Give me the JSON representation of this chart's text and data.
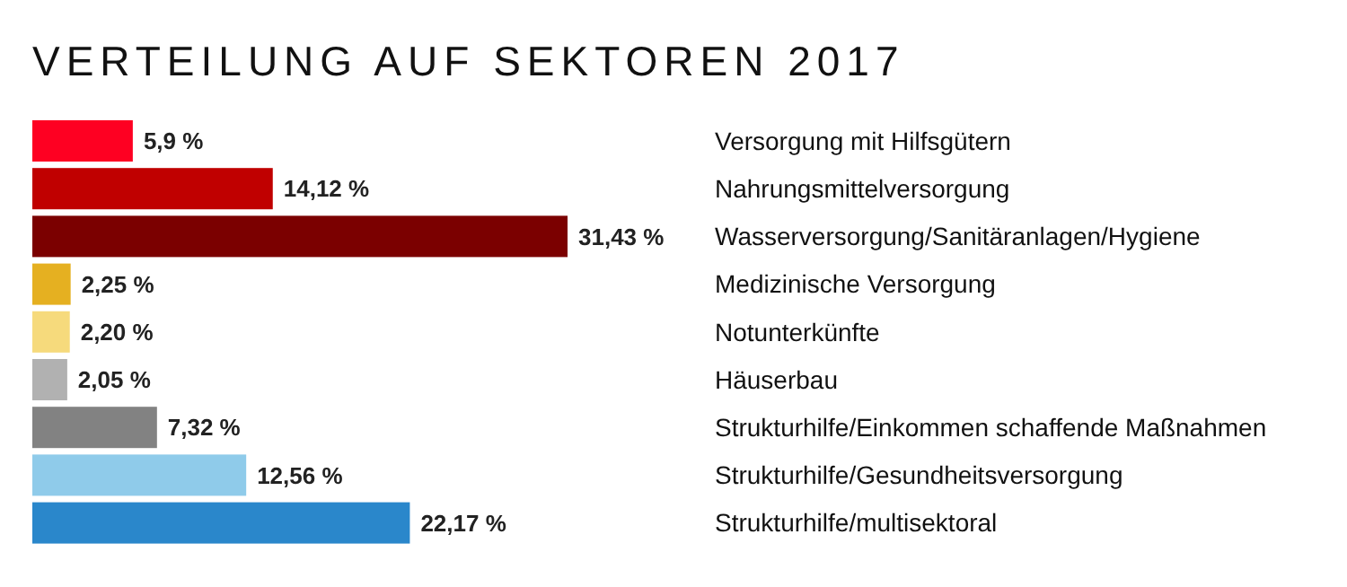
{
  "chart_data": {
    "type": "bar",
    "title": "VERTEILUNG AUF SEKTOREN 2017",
    "orientation": "horizontal",
    "categories": [
      "Versorgung mit Hilfsgütern",
      "Nahrungsmittelversorgung",
      "Wasserversorgung/Sanitäranlagen/Hygiene",
      "Medizinische Versorgung",
      "Notunterkünfte",
      "Häuserbau",
      "Strukturhilfe/Einkommen schaffende Maßnahmen",
      "Strukturhilfe/Gesundheitsversorgung",
      "Strukturhilfe/multisektoral"
    ],
    "values": [
      5.9,
      14.12,
      31.43,
      2.25,
      2.2,
      2.05,
      7.32,
      12.56,
      22.17
    ],
    "colors": [
      "#fe0022",
      "#c00000",
      "#7b0000",
      "#e5b021",
      "#f6da7c",
      "#b1b1b1",
      "#828282",
      "#8fcbea",
      "#2a87cb"
    ],
    "value_labels": [
      "5,9 %",
      "14,12 %",
      "31,43 %",
      "2,25 %",
      "2,20 %",
      "2,05 %",
      "7,32 %",
      "12,56 %",
      "22,17 %"
    ]
  }
}
